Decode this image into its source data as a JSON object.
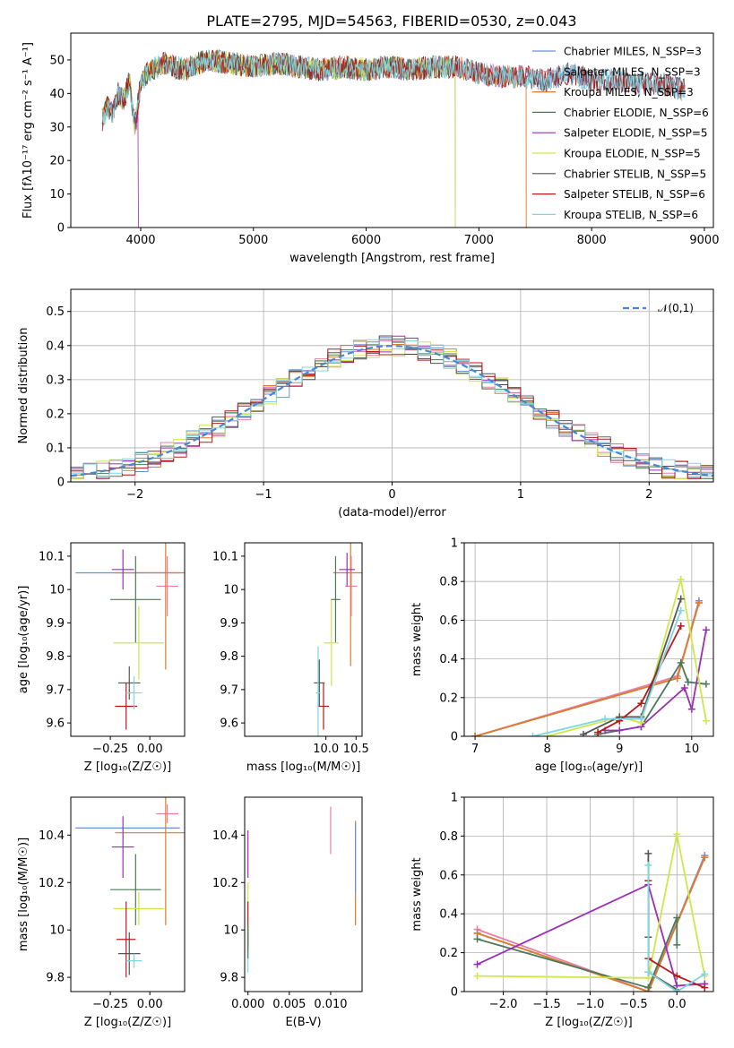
{
  "figure_title": "PLATE=2795, MJD=54563, FIBERID=0530, z=0.043",
  "colors": {
    "Chabrier MILES": "#6a8fd6",
    "Salpeter MILES": "#e87fa8",
    "Kroupa MILES": "#e07b2a",
    "Chabrier ELODIE": "#4a7a5a",
    "Salpeter ELODIE": "#9a2fb5",
    "Kroupa ELODIE": "#cde84a",
    "Chabrier STELIB": "#555555",
    "Salpeter STELIB": "#b51a1a",
    "Kroupa STELIB": "#7fd6e0",
    "normal_curve": "#4a86d4"
  },
  "chart_data": [
    {
      "type": "line",
      "title": "PLATE=2795, MJD=54563, FIBERID=0530, z=0.043",
      "xlabel": "wavelength [Angstrom, rest frame]",
      "ylabel": "Flux [fλ10⁻¹⁷ erg cm⁻² s⁻¹ A⁻¹]",
      "xlim": [
        3380,
        9080
      ],
      "ylim": [
        0,
        58
      ],
      "xticks": [
        4000,
        5000,
        6000,
        7000,
        8000,
        9000
      ],
      "yticks": [
        0,
        10,
        20,
        30,
        40,
        50
      ],
      "legend": [
        "Chabrier MILES, N_SSP=3",
        "Salpeter MILES, N_SSP=3",
        "Kroupa MILES, N_SSP=3",
        "Chabrier ELODIE, N_SSP=6",
        "Salpeter ELODIE, N_SSP=5",
        "Kroupa ELODIE, N_SSP=5",
        "Chabrier STELIB, N_SSP=5",
        "Salpeter STELIB, N_SSP=6",
        "Kroupa STELIB, N_SSP=6"
      ],
      "legend_placement": "right",
      "continuum_points": {
        "x": [
          3660,
          3700,
          3750,
          3800,
          3850,
          3900,
          3950,
          4000,
          4050,
          4100,
          4200,
          4300,
          4400,
          4500,
          4600,
          4800,
          5000,
          5200,
          5400,
          5600,
          5800,
          6000,
          6200,
          6400,
          6600,
          6800,
          7000,
          7200,
          7400,
          7600,
          7800,
          8000,
          8200,
          8400,
          8600,
          8830
        ],
        "y": [
          32,
          36,
          34,
          40,
          38,
          44,
          30,
          43,
          46,
          47,
          49,
          48,
          47,
          49,
          50,
          49,
          48,
          49,
          48,
          47,
          48,
          47,
          48,
          47,
          48,
          48,
          46,
          45,
          45,
          44,
          46,
          44,
          44,
          43,
          43,
          41
        ]
      },
      "series": [
        {
          "name": "Chabrier MILES",
          "x_end": 8830
        },
        {
          "name": "Salpeter MILES",
          "x_end": 7420
        },
        {
          "name": "Kroupa MILES",
          "x_end": 7420
        },
        {
          "name": "Chabrier ELODIE",
          "x_end": 6790
        },
        {
          "name": "Salpeter ELODIE",
          "x_end": 3980
        },
        {
          "name": "Kroupa ELODIE",
          "x_end": 6790
        },
        {
          "name": "Chabrier STELIB",
          "x_end": 8830
        },
        {
          "name": "Salpeter STELIB",
          "x_end": 8830
        },
        {
          "name": "Kroupa STELIB",
          "x_end": 8830
        }
      ]
    },
    {
      "type": "histogram",
      "xlabel": "(data-model)/error",
      "ylabel": "Normed distribution",
      "xlim": [
        -2.5,
        2.5
      ],
      "ylim": [
        0,
        0.565
      ],
      "xticks": [
        -2,
        -1,
        0,
        1,
        2
      ],
      "xtick_labels": [
        "−2",
        "−1",
        "0",
        "1",
        "2"
      ],
      "yticks": [
        0.0,
        0.1,
        0.2,
        0.3,
        0.4,
        0.5
      ],
      "grid": true,
      "legend": [
        "𝒩(0,1)"
      ],
      "legend_placement": "top-right",
      "bin_edges_start": -2.5,
      "bin_width": 0.1,
      "normal_curve": {
        "mean": 0,
        "sigma": 1
      }
    },
    {
      "type": "errorbar",
      "xlabel": "Z [log₁₀(Z/Z☉)]",
      "ylabel": "age  [log₁₀(age/yr)]",
      "xlim": [
        -0.5,
        0.22
      ],
      "ylim": [
        9.56,
        10.14
      ],
      "xticks": [
        -0.25,
        0.0
      ],
      "xtick_labels": [
        "−0.25",
        "0.00"
      ],
      "yticks": [
        9.6,
        9.7,
        9.8,
        9.9,
        10.0,
        10.1
      ],
      "points": [
        {
          "series": "Chabrier MILES",
          "x": -0.14,
          "y": 10.05,
          "xerr": 0.33,
          "yerr": 0.0
        },
        {
          "series": "Salpeter MILES",
          "x": 0.11,
          "y": 10.01,
          "xerr": 0.07,
          "yerr": 0.09
        },
        {
          "series": "Kroupa MILES",
          "x": 0.1,
          "y": 10.05,
          "xerr": 0.32,
          "yerr": 0.29
        },
        {
          "series": "Chabrier ELODIE",
          "x": -0.09,
          "y": 9.97,
          "xerr": 0.16,
          "yerr": 0.13
        },
        {
          "series": "Salpeter ELODIE",
          "x": -0.17,
          "y": 10.06,
          "xerr": 0.07,
          "yerr": 0.06
        },
        {
          "series": "Kroupa ELODIE",
          "x": -0.07,
          "y": 9.84,
          "xerr": 0.16,
          "yerr": 0.11
        },
        {
          "series": "Chabrier STELIB",
          "x": -0.13,
          "y": 9.72,
          "xerr": 0.07,
          "yerr": 0.05
        },
        {
          "series": "Salpeter STELIB",
          "x": -0.15,
          "y": 9.65,
          "xerr": 0.07,
          "yerr": 0.07
        },
        {
          "series": "Kroupa STELIB",
          "x": -0.1,
          "y": 9.69,
          "xerr": 0.05,
          "yerr": 0.05
        }
      ]
    },
    {
      "type": "errorbar",
      "xlabel": "mass [log₁₀(M/M☉)]",
      "ylabel": "",
      "xlim": [
        8.65,
        10.6
      ],
      "ylim": [
        9.56,
        10.14
      ],
      "xticks": [
        10.0,
        10.5
      ],
      "xtick_labels": [
        "10.0",
        "10.5"
      ],
      "yticks": [
        9.6,
        9.7,
        9.8,
        9.9,
        10.0,
        10.1
      ],
      "points": [
        {
          "series": "Chabrier MILES",
          "x": 10.42,
          "y": 10.05,
          "xerr": 0.0,
          "yerr": 0.05
        },
        {
          "series": "Salpeter MILES",
          "x": 10.42,
          "y": 10.01,
          "xerr": 0.1,
          "yerr": 0.09
        },
        {
          "series": "Kroupa MILES",
          "x": 10.41,
          "y": 10.05,
          "xerr": 0.29,
          "yerr": 0.28
        },
        {
          "series": "Chabrier ELODIE",
          "x": 10.16,
          "y": 9.97,
          "xerr": 0.08,
          "yerr": 0.13
        },
        {
          "series": "Salpeter ELODIE",
          "x": 10.35,
          "y": 10.06,
          "xerr": 0.13,
          "yerr": 0.05
        },
        {
          "series": "Kroupa ELODIE",
          "x": 10.09,
          "y": 9.84,
          "xerr": 0.12,
          "yerr": 0.13
        },
        {
          "series": "Chabrier STELIB",
          "x": 9.89,
          "y": 9.72,
          "xerr": 0.09,
          "yerr": 0.07
        },
        {
          "series": "Salpeter STELIB",
          "x": 9.96,
          "y": 9.65,
          "xerr": 0.09,
          "yerr": 0.07
        },
        {
          "series": "Kroupa STELIB",
          "x": 9.87,
          "y": 9.69,
          "xerr": 0.04,
          "yerr": 0.14
        }
      ]
    },
    {
      "type": "line",
      "xlabel": "age  [log₁₀(age/yr)]",
      "ylabel": "mass weight",
      "xlim": [
        6.85,
        10.3
      ],
      "ylim": [
        0,
        1.0
      ],
      "xticks": [
        7,
        8,
        9,
        10
      ],
      "yticks": [
        0.0,
        0.2,
        0.4,
        0.6,
        0.8,
        1.0
      ],
      "grid": true,
      "series": [
        {
          "name": "Chabrier MILES",
          "x": [
            7.0,
            9.8,
            10.1
          ],
          "y": [
            0.0,
            0.3,
            0.7
          ]
        },
        {
          "name": "Salpeter MILES",
          "x": [
            7.0,
            9.8,
            10.1
          ],
          "y": [
            0.0,
            0.31,
            0.69
          ]
        },
        {
          "name": "Kroupa MILES",
          "x": [
            7.0,
            9.8,
            10.1
          ],
          "y": [
            0.0,
            0.3,
            0.69
          ]
        },
        {
          "name": "Chabrier ELODIE",
          "x": [
            8.7,
            9.3,
            9.85,
            9.95,
            10.2
          ],
          "y": [
            0.01,
            0.05,
            0.38,
            0.28,
            0.27
          ]
        },
        {
          "name": "Salpeter ELODIE",
          "x": [
            8.8,
            9.0,
            9.3,
            9.9,
            10.0,
            10.2
          ],
          "y": [
            0.03,
            0.03,
            0.05,
            0.25,
            0.14,
            0.55
          ]
        },
        {
          "name": "Kroupa ELODIE",
          "x": [
            8.0,
            9.0,
            9.3,
            9.85,
            10.2
          ],
          "y": [
            0.0,
            0.1,
            0.07,
            0.81,
            0.08
          ]
        },
        {
          "name": "Chabrier STELIB",
          "x": [
            8.5,
            9.0,
            9.3,
            9.85
          ],
          "y": [
            0.01,
            0.1,
            0.1,
            0.71
          ]
        },
        {
          "name": "Salpeter STELIB",
          "x": [
            8.7,
            9.0,
            9.3,
            9.85
          ],
          "y": [
            0.02,
            0.08,
            0.17,
            0.57
          ]
        },
        {
          "name": "Kroupa STELIB",
          "x": [
            7.8,
            8.8,
            9.3,
            9.85
          ],
          "y": [
            0.0,
            0.09,
            0.09,
            0.65
          ]
        }
      ]
    },
    {
      "type": "errorbar",
      "xlabel": "Z [log₁₀(Z/Z☉)]",
      "ylabel": "mass [log₁₀(M/M☉)]",
      "xlim": [
        -0.5,
        0.22
      ],
      "ylim": [
        9.74,
        10.56
      ],
      "xticks": [
        -0.25,
        0.0
      ],
      "xtick_labels": [
        "−0.25",
        "0.00"
      ],
      "yticks": [
        9.8,
        10.0,
        10.2,
        10.4
      ],
      "points": [
        {
          "series": "Chabrier MILES",
          "x": -0.14,
          "y": 10.43,
          "xerr": 0.33,
          "yerr": 0.0
        },
        {
          "series": "Salpeter MILES",
          "x": 0.11,
          "y": 10.49,
          "xerr": 0.07,
          "yerr": 0.04
        },
        {
          "series": "Kroupa MILES",
          "x": 0.1,
          "y": 10.41,
          "xerr": 0.32,
          "yerr": 0.39
        },
        {
          "series": "Chabrier ELODIE",
          "x": -0.09,
          "y": 10.17,
          "xerr": 0.16,
          "yerr": 0.15
        },
        {
          "series": "Salpeter ELODIE",
          "x": -0.17,
          "y": 10.35,
          "xerr": 0.07,
          "yerr": 0.13
        },
        {
          "series": "Kroupa ELODIE",
          "x": -0.07,
          "y": 10.09,
          "xerr": 0.16,
          "yerr": 0.07
        },
        {
          "series": "Chabrier STELIB",
          "x": -0.13,
          "y": 9.9,
          "xerr": 0.07,
          "yerr": 0.09
        },
        {
          "series": "Salpeter STELIB",
          "x": -0.15,
          "y": 9.96,
          "xerr": 0.06,
          "yerr": 0.16
        },
        {
          "series": "Kroupa STELIB",
          "x": -0.1,
          "y": 9.87,
          "xerr": 0.05,
          "yerr": 0.03
        }
      ]
    },
    {
      "type": "errorbar",
      "xlabel": "E(B-V)",
      "ylabel": "",
      "xlim": [
        -0.0004,
        0.0138
      ],
      "ylim": [
        9.74,
        10.56
      ],
      "xticks": [
        0.0,
        0.005,
        0.01
      ],
      "xtick_labels": [
        "0.000",
        "0.005",
        "0.010"
      ],
      "yticks": [
        9.8,
        10.0,
        10.2,
        10.4
      ],
      "points": [
        {
          "series": "Salpeter ELODIE",
          "x": 0.0,
          "y": 10.32,
          "xerr": 0.0,
          "yerr": 0.1
        },
        {
          "series": "Kroupa ELODIE",
          "x": 0.0,
          "y": 10.14,
          "xerr": 0.0,
          "yerr": 0.06
        },
        {
          "series": "Salpeter STELIB",
          "x": 0.0,
          "y": 10.02,
          "xerr": 0.0,
          "yerr": 0.1
        },
        {
          "series": "Kroupa STELIB",
          "x": 0.0,
          "y": 9.87,
          "xerr": 0.0,
          "yerr": 0.05
        },
        {
          "series": "Chabrier ELODIE",
          "x": 0.0,
          "y": 9.95,
          "xerr": 0.0,
          "yerr": 0.07
        },
        {
          "series": "Salpeter MILES",
          "x": 0.01,
          "y": 10.42,
          "xerr": 0.0,
          "yerr": 0.1
        },
        {
          "series": "Kroupa MILES",
          "x": 0.013,
          "y": 10.24,
          "xerr": 0.0,
          "yerr": 0.22
        },
        {
          "series": "Chabrier MILES",
          "x": 0.013,
          "y": 10.3,
          "xerr": 0.0,
          "yerr": 0.15
        }
      ]
    },
    {
      "type": "line",
      "xlabel": "Z [log₁₀(Z/Z☉)]",
      "ylabel": "mass weight",
      "xlim": [
        -2.45,
        0.42
      ],
      "ylim": [
        0,
        1.0
      ],
      "xticks": [
        -2.0,
        -1.5,
        -1.0,
        -0.5,
        0.0
      ],
      "xtick_labels": [
        "−2.0",
        "−1.5",
        "−1.0",
        "−0.5",
        "0.0"
      ],
      "yticks": [
        0.0,
        0.2,
        0.4,
        0.6,
        0.8,
        1.0
      ],
      "grid": true,
      "series": [
        {
          "name": "Chabrier MILES",
          "x": [
            -2.3,
            -0.33,
            0.32
          ],
          "y": [
            0.3,
            0.0,
            0.7
          ]
        },
        {
          "name": "Salpeter MILES",
          "x": [
            -2.3,
            -0.33,
            0.32
          ],
          "y": [
            0.32,
            0.0,
            0.69
          ]
        },
        {
          "name": "Kroupa MILES",
          "x": [
            -2.3,
            -0.33,
            0.32
          ],
          "y": [
            0.3,
            0.0,
            0.69
          ]
        },
        {
          "name": "Chabrier ELODIE",
          "x": [
            -2.3,
            -0.33,
            0.0,
            0.0
          ],
          "y": [
            0.27,
            0.02,
            0.38,
            0.24
          ]
        },
        {
          "name": "Salpeter ELODIE",
          "x": [
            -2.3,
            -0.33,
            0.0,
            0.32
          ],
          "y": [
            0.14,
            0.55,
            0.03,
            0.04
          ]
        },
        {
          "name": "Kroupa ELODIE",
          "x": [
            -2.3,
            -0.33,
            0.0,
            0.32
          ],
          "y": [
            0.08,
            0.07,
            0.81,
            0.08
          ]
        },
        {
          "name": "Chabrier STELIB",
          "x": [
            -0.33,
            -0.33,
            -0.33,
            0.0
          ],
          "y": [
            0.71,
            0.28,
            0.1,
            0.01
          ]
        },
        {
          "name": "Salpeter STELIB",
          "x": [
            -0.33,
            -0.33,
            0.0,
            0.32
          ],
          "y": [
            0.57,
            0.17,
            0.08,
            0.02
          ]
        },
        {
          "name": "Kroupa STELIB",
          "x": [
            -0.33,
            -0.33,
            0.0,
            0.32
          ],
          "y": [
            0.65,
            0.1,
            0.0,
            0.09
          ]
        }
      ]
    }
  ]
}
